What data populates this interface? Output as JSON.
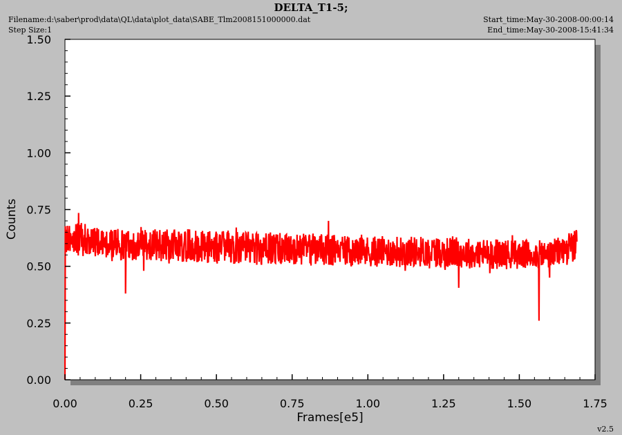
{
  "header": {
    "title": "DELTA_T1-5;",
    "filename": "Filename:d:\\saber\\prod\\data\\QL\\data\\plot_data\\SABE_Tlm2008151000000.dat",
    "step_size": "Step Size:1",
    "start_time": "Start_time:May-30-2008-00:00:14",
    "end_time": "End_time:May-30-2008-15:41:34",
    "version": "v2.5"
  },
  "colors": {
    "series": "#ff0000",
    "plot_bg": "#ffffff",
    "page_bg": "#c0c0c0",
    "shadow": "#808080"
  },
  "chart_data": {
    "type": "line",
    "title": "DELTA_T1-5;",
    "xlabel": "Frames[e5]",
    "ylabel": "Counts",
    "xlim": [
      0,
      1.75
    ],
    "ylim": [
      0,
      1.5
    ],
    "xticks": [
      "0.00",
      "0.25",
      "0.50",
      "0.75",
      "1.00",
      "1.25",
      "1.50",
      "1.75"
    ],
    "yticks": [
      "0.00",
      "0.25",
      "0.50",
      "0.75",
      "1.00",
      "1.25",
      "1.50"
    ],
    "grid": false,
    "series": [
      {
        "band": {
          "x_start": 0.0,
          "x_end": 1.69,
          "low": 0.53,
          "high": 0.66
        },
        "values_by_segment": [
          {
            "x": 0.0,
            "low": 0.55,
            "high": 0.68
          },
          {
            "x": 0.05,
            "low": 0.55,
            "high": 0.69
          },
          {
            "x": 0.1,
            "low": 0.54,
            "high": 0.67
          },
          {
            "x": 0.2,
            "low": 0.53,
            "high": 0.66
          },
          {
            "x": 0.4,
            "low": 0.52,
            "high": 0.66
          },
          {
            "x": 0.6,
            "low": 0.51,
            "high": 0.65
          },
          {
            "x": 0.8,
            "low": 0.51,
            "high": 0.64
          },
          {
            "x": 1.0,
            "low": 0.5,
            "high": 0.63
          },
          {
            "x": 1.2,
            "low": 0.5,
            "high": 0.63
          },
          {
            "x": 1.4,
            "low": 0.49,
            "high": 0.62
          },
          {
            "x": 1.6,
            "low": 0.49,
            "high": 0.61
          },
          {
            "x": 1.69,
            "low": 0.52,
            "high": 0.66
          }
        ],
        "spikes": [
          {
            "x": 0.0,
            "y": 0.0
          },
          {
            "x": 0.045,
            "y": 0.735
          },
          {
            "x": 0.2,
            "y": 0.38
          },
          {
            "x": 0.26,
            "y": 0.48
          },
          {
            "x": 0.87,
            "y": 0.7
          },
          {
            "x": 1.3,
            "y": 0.405
          },
          {
            "x": 1.565,
            "y": 0.26
          },
          {
            "x": 1.6,
            "y": 0.45
          }
        ]
      }
    ]
  }
}
